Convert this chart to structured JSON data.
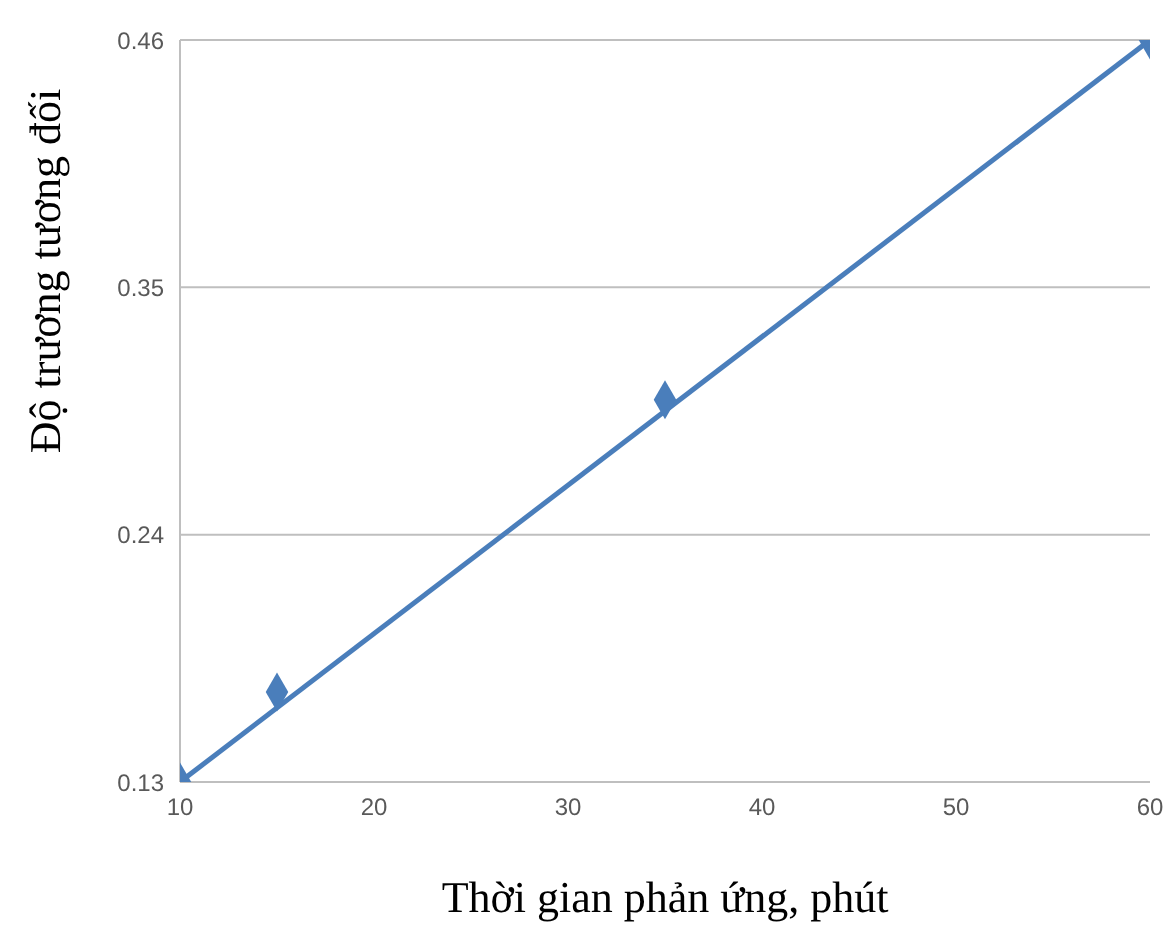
{
  "chart_data": {
    "type": "scatter",
    "xlabel": "Thời gian phản ứng, phút",
    "ylabel": "Độ trương tương đối",
    "series": [
      {
        "color": "#4a7ebb",
        "marker": "diamond",
        "x": [
          10,
          15,
          35,
          60
        ],
        "values": [
          0.13,
          0.17,
          0.3,
          0.46
        ]
      },
      {
        "type": "line",
        "color": "#4a7ebb",
        "marker": "none",
        "x": [
          10,
          60
        ],
        "values": [
          0.13,
          0.46
        ]
      }
    ],
    "xlim": [
      10,
      60
    ],
    "xticks": [
      10,
      20,
      30,
      40,
      50,
      60
    ],
    "ylim": [
      0.13,
      0.46
    ],
    "yticks": [
      0.13,
      0.24,
      0.35,
      0.46
    ],
    "grid": "y",
    "legend": false
  }
}
